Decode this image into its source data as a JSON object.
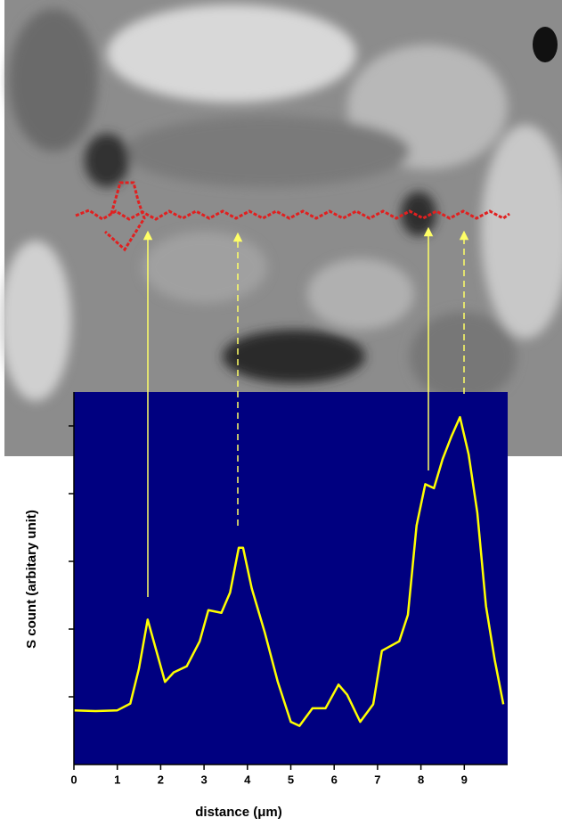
{
  "chart_data": {
    "type": "line",
    "x_label": "distance (μm)",
    "y_label": "S count (arbitary unit)",
    "x": [
      0,
      0.5,
      1.0,
      1.3,
      1.5,
      1.7,
      1.9,
      2.1,
      2.3,
      2.6,
      2.9,
      3.1,
      3.4,
      3.6,
      3.8,
      3.9,
      4.1,
      4.4,
      4.7,
      5.0,
      5.2,
      5.5,
      5.8,
      6.1,
      6.3,
      6.6,
      6.9,
      7.1,
      7.5,
      7.7,
      7.9,
      8.1,
      8.3,
      8.5,
      8.7,
      8.9,
      9.1,
      9.3,
      9.5,
      9.7,
      9.9
    ],
    "series": [
      {
        "color": "#ffff00",
        "values": [
          0.8,
          0.79,
          0.8,
          0.9,
          1.42,
          2.14,
          1.68,
          1.22,
          1.36,
          1.45,
          1.82,
          2.28,
          2.24,
          2.54,
          3.2,
          3.2,
          2.6,
          1.95,
          1.22,
          0.63,
          0.57,
          0.83,
          0.83,
          1.18,
          1.03,
          0.63,
          0.89,
          1.68,
          1.82,
          2.21,
          3.53,
          4.14,
          4.08,
          4.51,
          4.84,
          5.13,
          4.58,
          3.72,
          2.34,
          1.55,
          0.89
        ]
      }
    ],
    "xlim": [
      0,
      10
    ],
    "xticks": [
      0,
      1,
      2,
      3,
      4,
      5,
      6,
      7,
      8,
      9
    ],
    "ylim": [
      0,
      5.5
    ],
    "yticks": [
      1,
      2,
      3,
      4,
      5
    ],
    "ytick_labels": false,
    "background": "#000080"
  }
}
